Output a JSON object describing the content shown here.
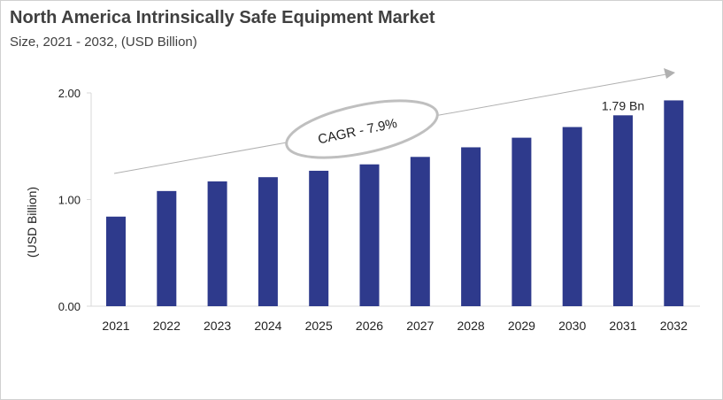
{
  "chart_data": {
    "type": "bar",
    "title": "North America Intrinsically Safe Equipment Market",
    "subtitle": "Size, 2021 - 2032, (USD Billion)",
    "ylabel": "(USD Billion)",
    "xlabel": "",
    "categories": [
      "2021",
      "2022",
      "2023",
      "2024",
      "2025",
      "2026",
      "2027",
      "2028",
      "2029",
      "2030",
      "2031",
      "2032"
    ],
    "values": [
      0.84,
      1.08,
      1.17,
      1.21,
      1.27,
      1.33,
      1.4,
      1.49,
      1.58,
      1.68,
      1.79,
      1.93
    ],
    "ylim": [
      0,
      2.0
    ],
    "yticks": [
      "0.00",
      "1.00",
      "2.00"
    ],
    "grid": false,
    "bar_color": "#2e3a8c",
    "annotations": {
      "data_label": "1.79 Bn",
      "data_label_category": "2031",
      "cagr": "CAGR - 7.9%"
    }
  }
}
